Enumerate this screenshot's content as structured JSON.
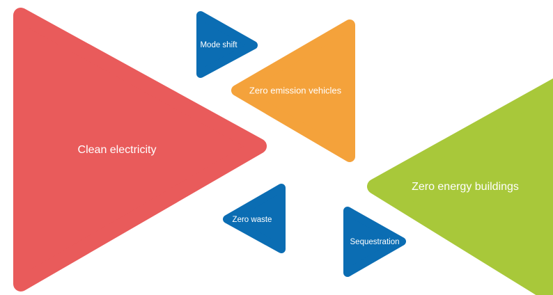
{
  "nodes": [
    {
      "label": "Clean electricity"
    },
    {
      "label": "Mode shift"
    },
    {
      "label": "Zero emission vehicles"
    },
    {
      "label": "Zero energy buildings"
    },
    {
      "label": "Zero waste"
    },
    {
      "label": "Sequestration"
    }
  ]
}
